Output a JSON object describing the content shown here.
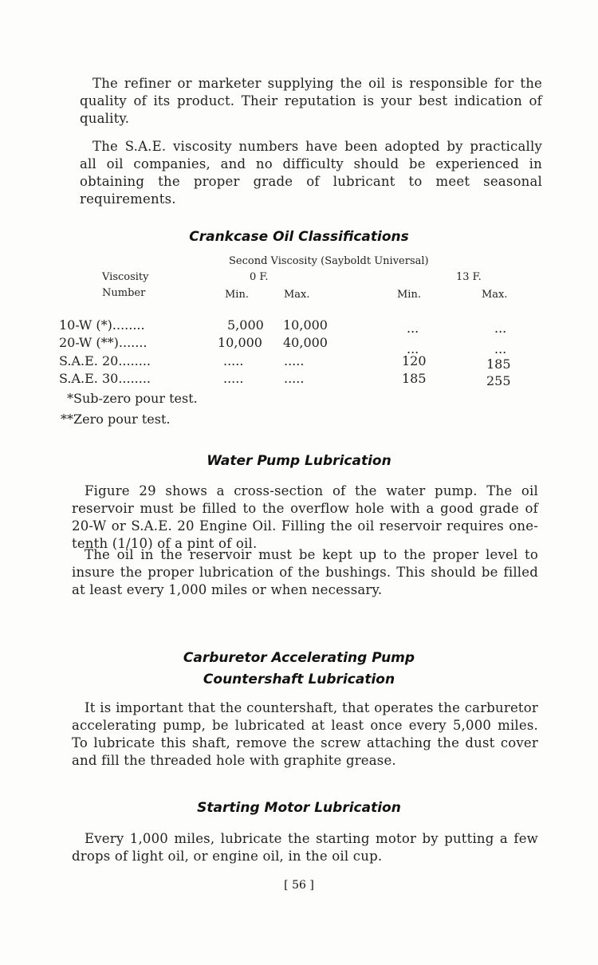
{
  "paragraphs": {
    "p1": "The refiner or marketer supplying the oil is responsible for the quality of its product. Their reputation is your best indication of quality.",
    "p2": "The S.A.E. viscosity numbers have been adopted by practically all oil companies, and no difficulty should be experienced in obtaining the proper grade of lubricant to meet seasonal requirements."
  },
  "crankcase": {
    "title": "Crankcase Oil Classifications",
    "group_header": "Second Viscosity (Sayboldt Universal)",
    "col1a": "Viscosity",
    "col1b": "Number",
    "temp1": "0 F.",
    "temp2": "13 F.",
    "min": "Min.",
    "max": "Max.",
    "rows": [
      {
        "name": "10-W (*)........",
        "min0": "5,000",
        "max0": "10,000",
        "min13": "...",
        "max13": "..."
      },
      {
        "name": "20-W (**).......",
        "min0": "10,000",
        "max0": "40,000",
        "min13": "...",
        "max13": "..."
      },
      {
        "name": "S.A.E. 20........",
        "min0": ".....",
        "max0": ".....",
        "min13": "120",
        "max13": "185"
      },
      {
        "name": "S.A.E. 30........",
        "min0": ".....",
        "max0": ".....",
        "min13": "185",
        "max13": "255"
      }
    ],
    "note1": "*Sub-zero pour test.",
    "note2": "**Zero pour test."
  },
  "water_pump": {
    "title": "Water Pump Lubrication",
    "p1": "Figure 29 shows a cross-section of the water pump. The oil reservoir must be filled to the overflow hole with a good grade of 20-W or S.A.E. 20 Engine Oil. Filling the oil reservoir requires one-tenth (1/10) of a pint of oil.",
    "p2": "The oil in the reservoir must be kept up to the proper level to insure the proper lubrication of the bushings. This should be filled at least every 1,000 miles or when necessary."
  },
  "carburetor": {
    "title1": "Carburetor Accelerating Pump",
    "title2": "Countershaft Lubrication",
    "p1": "It is important that the countershaft, that operates the carburetor accelerating pump, be lubricated at least once every 5,000 miles. To lubricate this shaft, remove the screw attaching the dust cover and fill the threaded hole with graphite grease."
  },
  "starting_motor": {
    "title": "Starting Motor Lubrication",
    "p1": "Every 1,000 miles, lubricate the starting motor by putting a few drops of light oil, or engine oil, in the oil cup."
  },
  "page_number": "[ 56 ]"
}
